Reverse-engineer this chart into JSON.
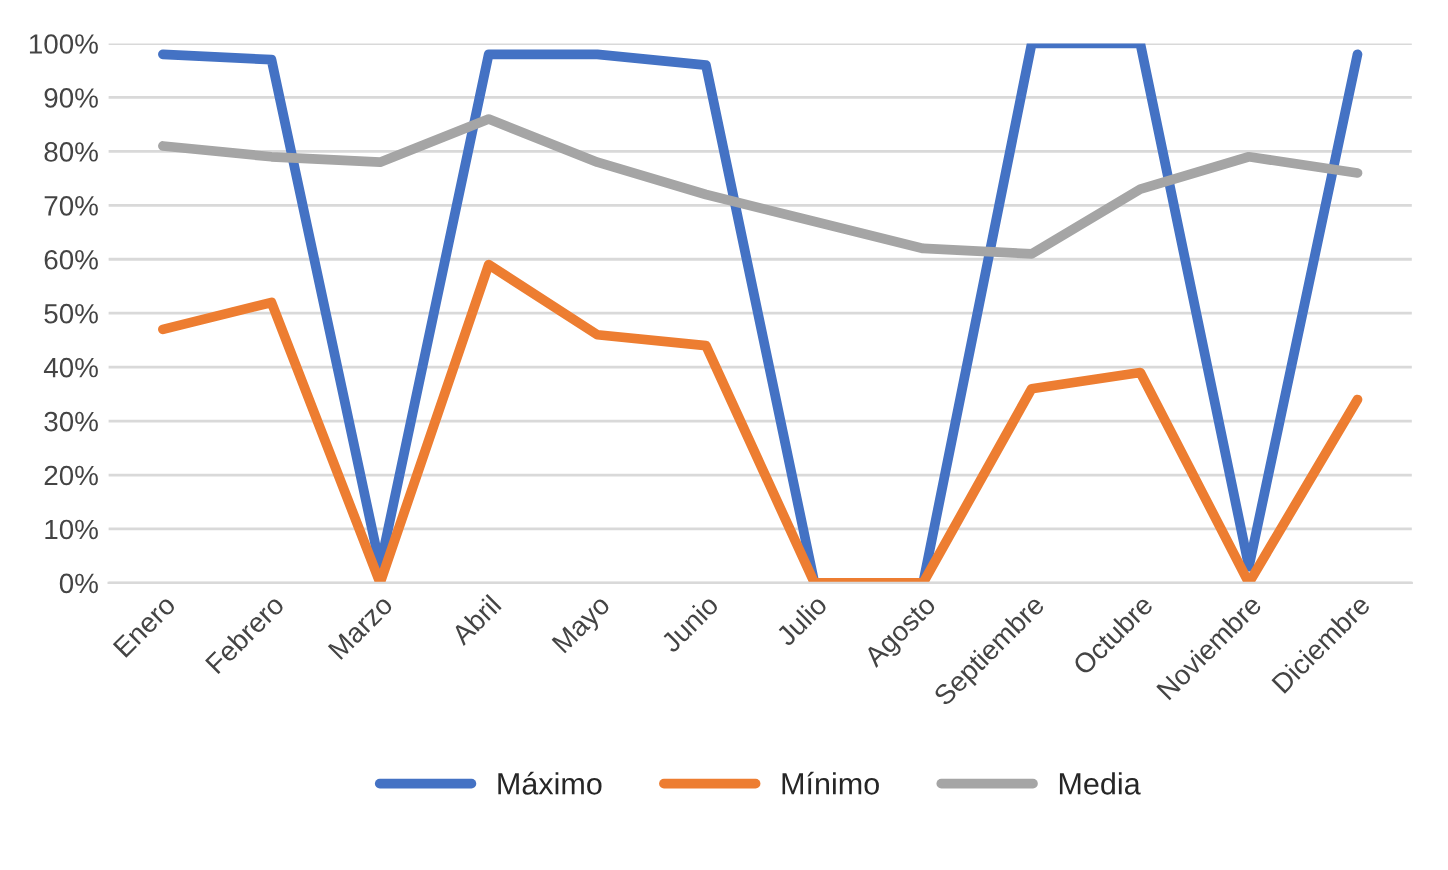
{
  "chart_data": {
    "type": "line",
    "categories": [
      "Enero",
      "Febrero",
      "Marzo",
      "Abril",
      "Mayo",
      "Junio",
      "Julio",
      "Agosto",
      "Septiembre",
      "Octubre",
      "Noviembre",
      "Diciembre"
    ],
    "series": [
      {
        "name": "Máximo",
        "color": "#4472c4",
        "values": [
          98,
          97,
          3,
          98,
          98,
          96,
          0,
          0,
          100,
          100,
          3,
          98
        ]
      },
      {
        "name": "Mínimo",
        "color": "#ed7d31",
        "values": [
          47,
          52,
          0,
          59,
          46,
          44,
          0,
          0,
          36,
          39,
          0,
          34
        ]
      },
      {
        "name": "Media",
        "color": "#a5a5a5",
        "values": [
          81,
          79,
          78,
          86,
          78,
          72,
          67,
          62,
          61,
          73,
          79,
          76
        ]
      }
    ],
    "ylim": [
      0,
      100
    ],
    "yticks": [
      {
        "value": 0,
        "label": "0%"
      },
      {
        "value": 10,
        "label": "10%"
      },
      {
        "value": 20,
        "label": "20%"
      },
      {
        "value": 30,
        "label": "30%"
      },
      {
        "value": 40,
        "label": "40%"
      },
      {
        "value": 50,
        "label": "50%"
      },
      {
        "value": 60,
        "label": "60%"
      },
      {
        "value": 70,
        "label": "70%"
      },
      {
        "value": 80,
        "label": "80%"
      },
      {
        "value": 90,
        "label": "90%"
      },
      {
        "value": 100,
        "label": "100%"
      }
    ],
    "grid": "y",
    "legend": "bottom",
    "marker": "none",
    "line_style": "solid"
  }
}
